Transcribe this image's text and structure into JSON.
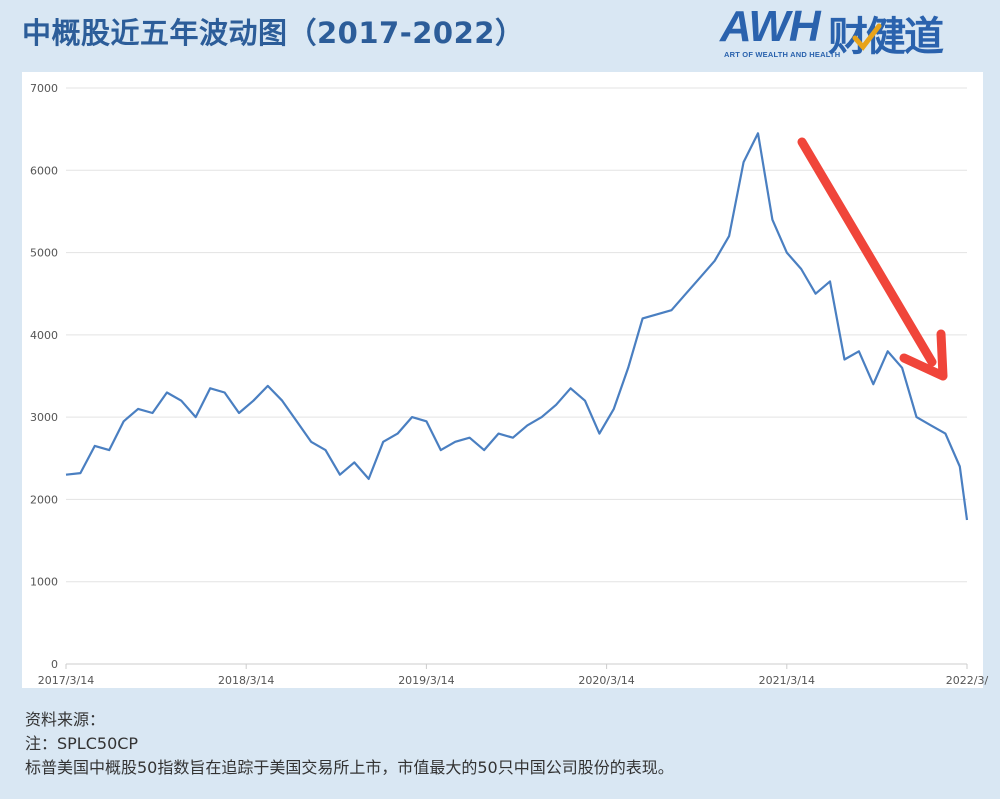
{
  "title": "中概股近五年波动图（2017-2022）",
  "logo": {
    "mark": "AWH",
    "cn": "财健道",
    "sub": "ART OF WEALTH AND HEALTH",
    "brand_color": "#2a62ad",
    "check_color": "#e8a31a"
  },
  "notes": {
    "source": "资料来源：",
    "note": "注：SPLC50CP",
    "description": "标普美国中概股50指数旨在追踪于美国交易所上市，市值最大的50只中国公司股份的表现。"
  },
  "chart_data": {
    "type": "line",
    "title": "",
    "xlabel": "",
    "ylabel": "",
    "ylim": [
      0,
      7000
    ],
    "yticks": [
      0,
      1000,
      2000,
      3000,
      4000,
      5000,
      6000,
      7000
    ],
    "grid": true,
    "legend": "none",
    "line_color": "#4a7fc1",
    "arrow_color": "#f0453a",
    "x_tick_labels": [
      "2017/3/14",
      "2018/3/14",
      "2019/3/14",
      "2020/3/14",
      "2021/3/14",
      "2022/3/"
    ],
    "x": [
      2017.2,
      2017.28,
      2017.36,
      2017.44,
      2017.52,
      2017.6,
      2017.68,
      2017.76,
      2017.84,
      2017.92,
      2018.0,
      2018.08,
      2018.16,
      2018.24,
      2018.32,
      2018.4,
      2018.48,
      2018.56,
      2018.64,
      2018.72,
      2018.8,
      2018.88,
      2018.96,
      2019.04,
      2019.12,
      2019.2,
      2019.28,
      2019.36,
      2019.44,
      2019.52,
      2019.6,
      2019.68,
      2019.76,
      2019.84,
      2019.92,
      2020.0,
      2020.08,
      2020.16,
      2020.24,
      2020.32,
      2020.4,
      2020.48,
      2020.56,
      2020.64,
      2020.72,
      2020.8,
      2020.88,
      2020.96,
      2021.04,
      2021.12,
      2021.2,
      2021.28,
      2021.36,
      2021.44,
      2021.52,
      2021.6,
      2021.68,
      2021.76,
      2021.84,
      2021.92,
      2022.0,
      2022.08,
      2022.16,
      2022.2
    ],
    "values": [
      2300,
      2320,
      2650,
      2600,
      2950,
      3100,
      3050,
      3300,
      3200,
      3000,
      3350,
      3300,
      3050,
      3200,
      3380,
      3200,
      2950,
      2700,
      2600,
      2300,
      2450,
      2250,
      2700,
      2800,
      3000,
      2950,
      2600,
      2700,
      2750,
      2600,
      2800,
      2750,
      2900,
      3000,
      3150,
      3350,
      3200,
      2800,
      3100,
      3600,
      4200,
      4250,
      4300,
      4500,
      4700,
      4900,
      5200,
      6100,
      6450,
      5400,
      5000,
      4800,
      4500,
      4650,
      3700,
      3800,
      3400,
      3800,
      3600,
      3000,
      2900,
      2800,
      2400,
      1750
    ]
  }
}
